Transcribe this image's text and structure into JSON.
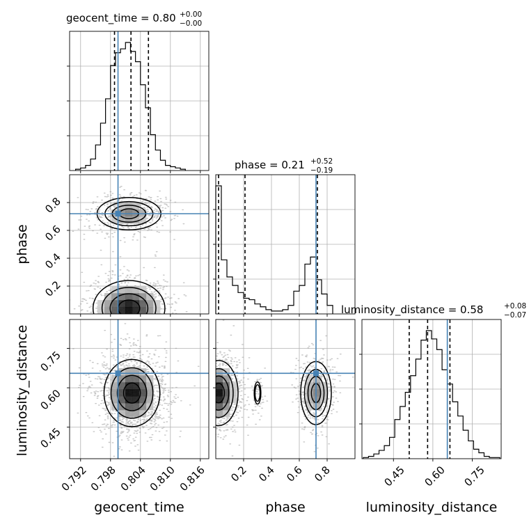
{
  "chart_data": [
    {
      "type": "histogram",
      "panel": "geocent_time marginal",
      "title_param": "geocent_time",
      "median": "0.80",
      "err_plus": "+0.00",
      "err_minus": "−0.00",
      "x": [
        0.7915,
        0.7925,
        0.7935,
        0.7945,
        0.7955,
        0.7965,
        0.7975,
        0.7985,
        0.7995,
        0.8005,
        0.8015,
        0.8025,
        0.8035,
        0.8045,
        0.8055,
        0.8065,
        0.8075,
        0.8085,
        0.8095,
        0.8105,
        0.8115,
        0.8125
      ],
      "counts": [
        1,
        2,
        4,
        9,
        20,
        37,
        56,
        82,
        92,
        95,
        100,
        93,
        85,
        67,
        49,
        28,
        16,
        8,
        4,
        3,
        2,
        1
      ],
      "quantiles": [
        0.7988,
        0.8021,
        0.8056
      ],
      "truth": 0.7995,
      "xlim": [
        0.7898,
        0.8177
      ]
    },
    {
      "type": "histogram",
      "panel": "phase marginal",
      "title_param": "phase",
      "median": "0.21",
      "err_plus": "+0.52",
      "err_minus": "−0.19",
      "x": [
        0.02,
        0.06,
        0.1,
        0.14,
        0.18,
        0.22,
        0.26,
        0.3,
        0.34,
        0.38,
        0.42,
        0.46,
        0.5,
        0.54,
        0.58,
        0.62,
        0.66,
        0.7,
        0.74,
        0.78,
        0.82
      ],
      "counts": [
        90,
        38,
        26,
        20,
        15,
        11,
        10,
        7,
        5,
        3,
        2,
        2,
        3,
        6,
        16,
        20,
        35,
        40,
        24,
        14,
        6
      ],
      "quantiles": [
        0.02,
        0.21,
        0.73
      ],
      "truth": 0.72,
      "xlim": [
        0.0,
        1.0
      ]
    },
    {
      "type": "histogram",
      "panel": "luminosity_distance marginal",
      "title_param": "luminosity_distance",
      "median": "0.58",
      "err_plus": "+0.08",
      "err_minus": "−0.07",
      "x": [
        0.345,
        0.365,
        0.385,
        0.405,
        0.425,
        0.445,
        0.465,
        0.485,
        0.505,
        0.525,
        0.545,
        0.565,
        0.585,
        0.605,
        0.625,
        0.645,
        0.665,
        0.685,
        0.705,
        0.725,
        0.745,
        0.765,
        0.785,
        0.805,
        0.825,
        0.845
      ],
      "counts": [
        1,
        2,
        4,
        7,
        11,
        18,
        33,
        44,
        56,
        70,
        84,
        100,
        108,
        101,
        92,
        75,
        63,
        48,
        36,
        24,
        15,
        8,
        5,
        2,
        1,
        1
      ],
      "quantiles": [
        0.51,
        0.58,
        0.665
      ],
      "truth": 0.655,
      "xlim": [
        0.33,
        0.86
      ]
    },
    {
      "type": "contour_2d",
      "panel": "geocent_time vs phase",
      "xlim": [
        0.7898,
        0.8177
      ],
      "ylim": [
        0.0,
        1.0
      ],
      "truth": [
        0.7995,
        0.72
      ],
      "blobs": [
        {
          "cx": 0.8017,
          "cy": 0.72,
          "sx": 0.0032,
          "sy": 0.058,
          "w": 0.6
        },
        {
          "cx": 0.8017,
          "cy": 0.04,
          "sx": 0.0036,
          "sy": 0.1,
          "w": 1.0
        }
      ]
    },
    {
      "type": "contour_2d",
      "panel": "geocent_time vs luminosity_distance",
      "xlim": [
        0.7898,
        0.8177
      ],
      "ylim": [
        0.33,
        0.86
      ],
      "truth": [
        0.7995,
        0.655
      ],
      "blobs": [
        {
          "cx": 0.8023,
          "cy": 0.58,
          "sx": 0.0028,
          "sy": 0.064,
          "w": 1.0
        }
      ]
    },
    {
      "type": "contour_2d",
      "panel": "phase vs luminosity_distance",
      "xlim": [
        0.0,
        1.0
      ],
      "ylim": [
        0.33,
        0.86
      ],
      "truth": [
        0.72,
        0.655
      ],
      "blobs": [
        {
          "cx": 0.02,
          "cy": 0.58,
          "sx": 0.07,
          "sy": 0.062,
          "w": 1.0
        },
        {
          "cx": 0.72,
          "cy": 0.58,
          "sx": 0.055,
          "sy": 0.06,
          "w": 0.6
        },
        {
          "cx": 0.3,
          "cy": 0.58,
          "sx": 0.02,
          "sy": 0.035,
          "w": 0.1
        }
      ]
    }
  ],
  "ticks": {
    "geocent_time": [
      "0.792",
      "0.798",
      "0.804",
      "0.810",
      "0.816"
    ],
    "phase_x": [
      "0.2",
      "0.4",
      "0.6",
      "0.8"
    ],
    "phase_y": [
      "0.2",
      "0.4",
      "0.6",
      "0.8"
    ],
    "luminosity_distance_x": [
      "0.45",
      "0.60",
      "0.75"
    ],
    "luminosity_distance_y": [
      "0.45",
      "0.60",
      "0.75"
    ]
  },
  "labels": {
    "x_geocent": "geocent_time",
    "x_phase": "phase",
    "x_lum": "luminosity_distance",
    "y_phase": "phase",
    "y_lum": "luminosity_distance"
  },
  "titles": {
    "geocent": "geocent_time = 0.80",
    "phase": "phase = 0.21",
    "lum": "luminosity_distance = 0.58"
  },
  "colors": {
    "truth": "#4682b4",
    "hist": "#000000",
    "quantile": "#000000"
  }
}
